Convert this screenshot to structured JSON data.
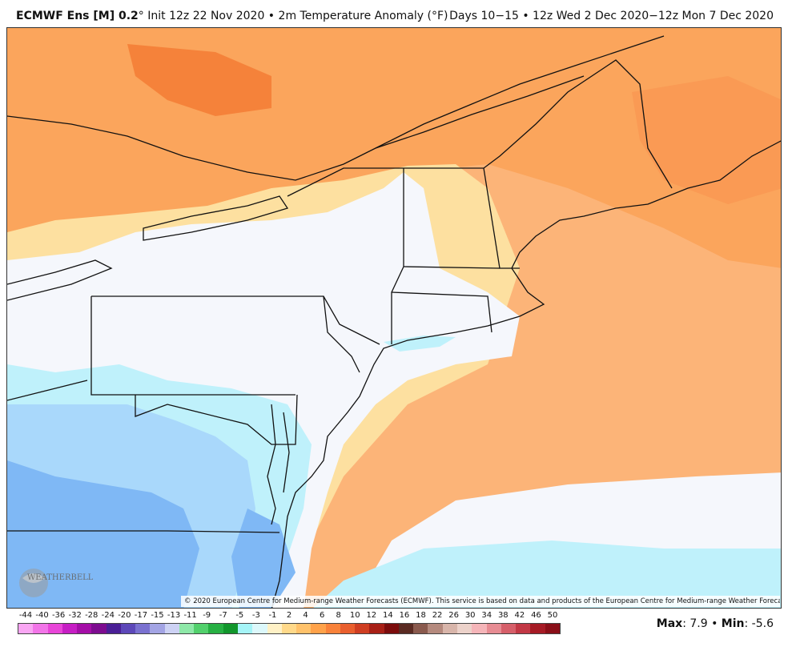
{
  "header": {
    "model": "ECMWF Ens [M] 0.2",
    "degree": "°",
    "init": " Init 12z 22 Nov 2020",
    "bullet": " • ",
    "field": "2m Temperature Anomaly (°F)",
    "valid": "Days 10−15 • 12z Wed 2 Dec 2020−12z Mon 7 Dec 2020"
  },
  "copyright": "© 2020 European Centre for Medium-range Weather Forecasts (ECMWF). This service is based on data and products of the European Centre for Medium-range Weather Forecasts (ECMWF).",
  "logo": {
    "text": "WEATHERBELL",
    "icon": "weatherbell-logo"
  },
  "legend": {
    "ticks": [
      "-44",
      "-40",
      "-36",
      "-32",
      "-28",
      "-24",
      "-20",
      "-17",
      "-15",
      "-13",
      "-11",
      "-9",
      "-7",
      "-5",
      "-3",
      "-1",
      "2",
      "4",
      "6",
      "8",
      "10",
      "12",
      "14",
      "16",
      "18",
      "22",
      "26",
      "30",
      "34",
      "38",
      "42",
      "46",
      "50"
    ],
    "colors": [
      "#f9a6f3",
      "#f275e8",
      "#e845d8",
      "#c61ec4",
      "#a40ea7",
      "#7d0c90",
      "#4a1f96",
      "#5d48b9",
      "#7a71d0",
      "#a3a4e4",
      "#cdd2f4",
      "#8ee8a8",
      "#52d06c",
      "#27b043",
      "#11962c",
      "#a5f4f7",
      "#dcf8fb",
      "#fff1c6",
      "#ffd98a",
      "#ffc26b",
      "#ffa24a",
      "#f9823a",
      "#e95f2e",
      "#cf3e22",
      "#a82016",
      "#7b0c0c",
      "#5a2a22",
      "#8a5a4e",
      "#b58a7e",
      "#d8b5aa",
      "#ecd2ca",
      "#f5b5b9",
      "#e78c93",
      "#d65f6a",
      "#c23845",
      "#a61b25",
      "#8a0f18"
    ]
  },
  "maxmin": {
    "max_label": "Max",
    "max_value": "7.9",
    "sep": " • ",
    "min_label": "Min",
    "min_value": "-5.6"
  },
  "colors": {
    "neutral": "#f5f7fc",
    "light_orange": "#fde0a0",
    "orange": "#fdc07a",
    "deep_orange": "#fba55c",
    "dark_orange": "#f5823a",
    "light_blue": "#bff1fb",
    "blue": "#a9d8fb",
    "mid_blue": "#7fb8f5"
  }
}
